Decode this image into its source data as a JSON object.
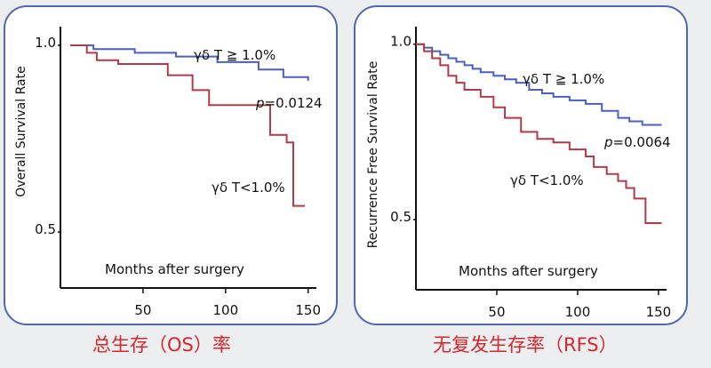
{
  "captions": {
    "left": "总生存（OS）率",
    "right": "无复发生存率（RFS）"
  },
  "chart_data": [
    {
      "type": "line",
      "title": "",
      "xlabel": "Months after surgery",
      "ylabel": "Overall Survival Rate",
      "x_ticks": [
        50,
        100,
        150
      ],
      "x_tick_labels": [
        "50",
        "100",
        "150"
      ],
      "y_ticks": [
        0.5,
        1.0
      ],
      "y_tick_labels": [
        "0.5",
        "1.0"
      ],
      "grid": false,
      "p_value": "=0.0124",
      "p_label": "p",
      "series": [
        {
          "name": "γδ T ≧ 1.0%",
          "color": "#4a5fc1",
          "x": [
            6,
            20,
            45,
            70,
            95,
            120,
            135,
            150
          ],
          "y": [
            1.0,
            0.99,
            0.98,
            0.97,
            0.955,
            0.935,
            0.915,
            0.905
          ]
        },
        {
          "name": "γδ T<1.0%",
          "color": "#b23a48",
          "x": [
            6,
            16,
            22,
            35,
            65,
            80,
            90,
            127,
            137,
            141,
            148
          ],
          "y": [
            1.0,
            0.98,
            0.96,
            0.95,
            0.92,
            0.88,
            0.84,
            0.76,
            0.74,
            0.57,
            0.57
          ]
        }
      ]
    },
    {
      "type": "line",
      "title": "",
      "xlabel": "Months after surgery",
      "ylabel": "Recurrence Free Survival Rate",
      "x_ticks": [
        50,
        100,
        150
      ],
      "x_tick_labels": [
        "50",
        "100",
        "150"
      ],
      "y_ticks": [
        0.5,
        1.0
      ],
      "y_tick_labels": [
        "0.5",
        "1.0"
      ],
      "grid": false,
      "p_value": "=0.0064",
      "p_label": "p",
      "series": [
        {
          "name": "γδ T ≧ 1.0%",
          "color": "#4a5fc1",
          "x": [
            0,
            5,
            10,
            15,
            20,
            25,
            30,
            35,
            40,
            48,
            55,
            62,
            70,
            78,
            85,
            95,
            105,
            115,
            125,
            132,
            140,
            152
          ],
          "y": [
            1.0,
            0.99,
            0.98,
            0.97,
            0.96,
            0.95,
            0.94,
            0.93,
            0.92,
            0.91,
            0.9,
            0.89,
            0.87,
            0.86,
            0.85,
            0.84,
            0.83,
            0.81,
            0.79,
            0.78,
            0.77,
            0.77
          ]
        },
        {
          "name": "γδ T<1.0%",
          "color": "#b23a48",
          "x": [
            0,
            5,
            10,
            15,
            20,
            25,
            30,
            40,
            48,
            55,
            65,
            75,
            85,
            95,
            105,
            110,
            118,
            125,
            130,
            135,
            142,
            152
          ],
          "y": [
            1.0,
            0.98,
            0.96,
            0.94,
            0.91,
            0.89,
            0.87,
            0.85,
            0.82,
            0.79,
            0.75,
            0.73,
            0.72,
            0.7,
            0.68,
            0.65,
            0.63,
            0.61,
            0.59,
            0.56,
            0.49,
            0.49
          ]
        }
      ]
    }
  ]
}
